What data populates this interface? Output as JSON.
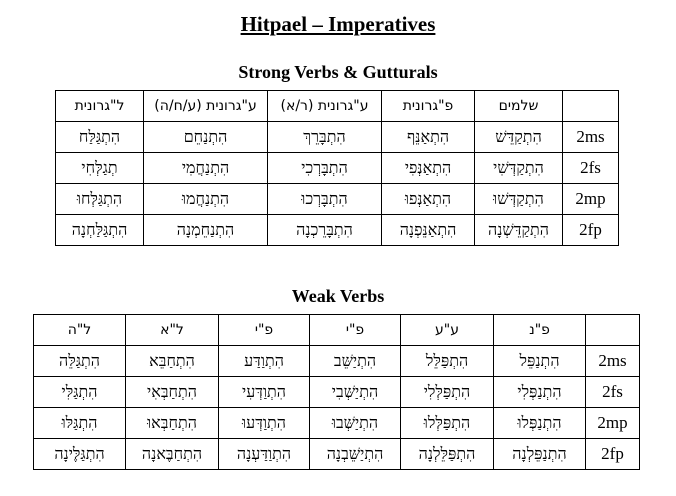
{
  "title": "Hitpael – Imperatives",
  "strong": {
    "heading": "Strong Verbs & Gutturals",
    "columns": [
      "ל\"גרונית",
      "ע\"גרונית (ע/ח/ה)",
      "ע\"גרונית (ר/א)",
      "פ\"גרונית",
      "שלמים",
      ""
    ],
    "rows": [
      {
        "label": "2ms",
        "cells": [
          "הִתְגַּלַּח",
          "הִתְנַחֵם",
          "הִתְבָּרֵךְ",
          "הִתְאַנֵּף",
          "הִתְקַדֵּשׁ"
        ]
      },
      {
        "label": "2fs",
        "cells": [
          "תְגַלְּחִי",
          "הִתְנַחֲמִי",
          "הִתְבָּרְכִי",
          "הִתְאַנְּפִי",
          "הִתְקַדְּשִׁי"
        ]
      },
      {
        "label": "2mp",
        "cells": [
          "הִתְגַּלְּחוּ",
          "הִתְנַחֲמוּ",
          "הִתְבָּרְכוּ",
          "הִתְאַנְּפוּ",
          "הִתְקַדְּשׁוּ"
        ]
      },
      {
        "label": "2fp",
        "cells": [
          "הִתְגַּלַּחְנָה",
          "הִתְנַחֵמְנָה",
          "הִתְבָּרֵכְנָה",
          "הִתְאַנֵּפְנָה",
          "הִתְקַדֵּשְׁנָה"
        ]
      }
    ]
  },
  "weak": {
    "heading": "Weak Verbs",
    "columns": [
      "ל\"ה",
      "ל\"א",
      "פ\"י",
      "פ\"י",
      "ע\"ע",
      "פ\"נ",
      ""
    ],
    "rows": [
      {
        "label": "2ms",
        "cells": [
          "הִתְגַּלֵּה",
          "הִתְחַבֵּא",
          "הִתְוַדַּע",
          "הִתְיַשֵּׁב",
          "הִתְפַּלֵּל",
          "הִתְנַפֵּל"
        ]
      },
      {
        "label": "2fs",
        "cells": [
          "הִתְגַּלִּי",
          "הִתְחַבְּאִי",
          "הִתְוַדְּעִי",
          "הִתְיַשְּׁבִי",
          "הִתְפַּלְּלִי",
          "הִתְנַפְּלִי"
        ]
      },
      {
        "label": "2mp",
        "cells": [
          "הִתְגַּלּוּ",
          "הִתְחַבְּאוּ",
          "הִתְוַדְּעוּ",
          "הִתְיַשְּׁבוּ",
          "הִתְפַּלְּלוּ",
          "הִתְנַפְּלוּ"
        ]
      },
      {
        "label": "2fp",
        "cells": [
          "הִתְגַּלֶּינָה",
          "הִתְחַבֶּאנָה",
          "הִתְוַדַּעְנָה",
          "הִתְיַשֵּׁבְנָה",
          "הִתְפַּלֵּלְנָה",
          "הִתְנַפֵּלְנָה"
        ]
      }
    ]
  }
}
